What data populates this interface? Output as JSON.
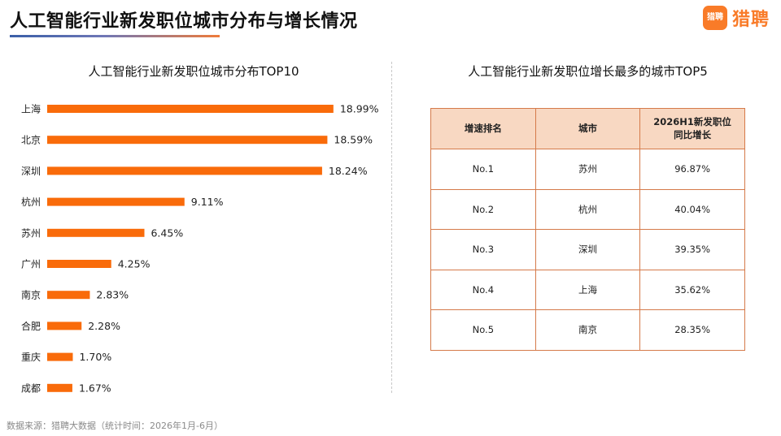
{
  "header": {
    "title": "人工智能行业新发职位城市分布与增长情况",
    "brand_badge": "猎聘",
    "brand_name": "猎聘"
  },
  "colors": {
    "bar": "#f96b0a",
    "accent": "#f97b28",
    "table_header_bg": "#f8d8c2",
    "table_border": "#d57a4a"
  },
  "chart_data": {
    "type": "bar",
    "orientation": "horizontal",
    "title": "人工智能行业新发职位城市分布TOP10",
    "categories": [
      "上海",
      "北京",
      "深圳",
      "杭州",
      "苏州",
      "广州",
      "南京",
      "合肥",
      "重庆",
      "成都"
    ],
    "values": [
      18.99,
      18.59,
      18.24,
      9.11,
      6.45,
      4.25,
      2.83,
      2.28,
      1.7,
      1.67
    ],
    "value_labels": [
      "18.99%",
      "18.59%",
      "18.24%",
      "9.11%",
      "6.45%",
      "4.25%",
      "2.83%",
      "2.28%",
      "1.70%",
      "1.67%"
    ],
    "unit": "%",
    "xlim": [
      0,
      19
    ],
    "grid": false,
    "legend": "none"
  },
  "table": {
    "title": "人工智能行业新发职位增长最多的城市TOP5",
    "headers": [
      "增速排名",
      "城市",
      "2026H1新发职位同比增长"
    ],
    "header_lines": [
      [
        "增速排名"
      ],
      [
        "城市"
      ],
      [
        "2026H1新发职位",
        "同比增长"
      ]
    ],
    "rows": [
      [
        "No.1",
        "苏州",
        "96.87%"
      ],
      [
        "No.2",
        "杭州",
        "40.04%"
      ],
      [
        "No.3",
        "深圳",
        "39.35%"
      ],
      [
        "No.4",
        "上海",
        "35.62%"
      ],
      [
        "No.5",
        "南京",
        "28.35%"
      ]
    ]
  },
  "footer": {
    "source": "数据来源：猎聘大数据（统计时间：2026年1月-6月）"
  }
}
